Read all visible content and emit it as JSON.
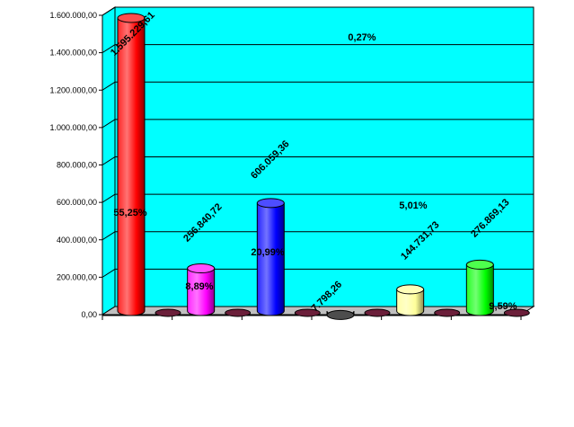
{
  "chart_data": {
    "type": "bar",
    "style": "3d-cylinder",
    "background": "#00ffff",
    "grid": true,
    "ylim": [
      0,
      1600000
    ],
    "yticks": [
      "0,00",
      "200.000,00",
      "400.000,00",
      "600.000,00",
      "800.000,00",
      "1.000.000,00",
      "1.200.000,00",
      "1.400.000,00",
      "1.600.000,00"
    ],
    "categories": [
      "",
      "",
      "",
      "",
      "",
      ""
    ],
    "series": [
      {
        "values": [
          1595229.61,
          256840.72,
          606059.36,
          7798.26,
          144731.73,
          276869.13
        ],
        "value_labels": [
          "1.595.229,61",
          "256.840,72",
          "606.059,36",
          "7.798,26",
          "144.731,73",
          "276.869,13"
        ],
        "colors": [
          "#ff0000",
          "#ff00ff",
          "#0000ff",
          "#000000",
          "#ffff99",
          "#00ff00"
        ]
      }
    ],
    "percent_labels": [
      "55,25%",
      "8,89%",
      "20,99%",
      "0,27%",
      "5,01%",
      "9,59%"
    ]
  }
}
